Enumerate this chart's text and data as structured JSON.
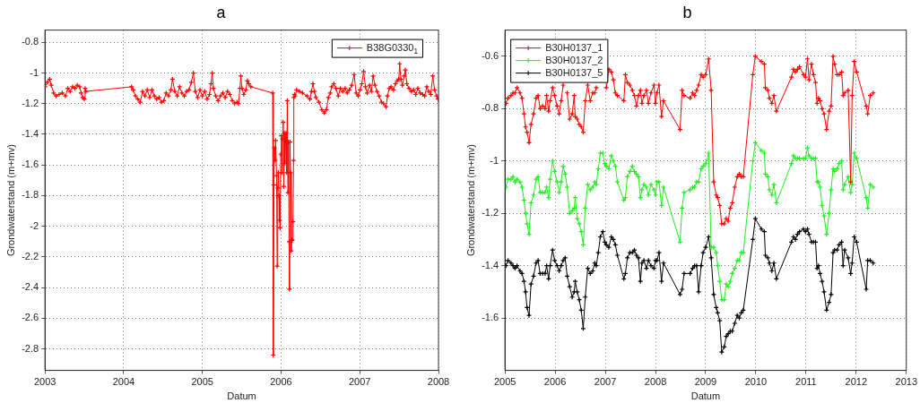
{
  "chart_data": [
    {
      "type": "line",
      "title": "a",
      "xlabel": "Datum",
      "ylabel": "Grondwaterstand (m+mv)",
      "xlim": [
        2003,
        2008
      ],
      "xticks": [
        2003,
        2004,
        2005,
        2006,
        2007,
        2008
      ],
      "ylim": [
        -2.94,
        -0.72
      ],
      "yticks": [
        -0.8,
        -1,
        -1.2,
        -1.4,
        -1.6,
        -1.8,
        -2,
        -2.2,
        -2.4,
        -2.6,
        -2.8
      ],
      "grid": true,
      "legend": "top right",
      "marker": "cross",
      "line_style": "solid",
      "series": [
        {
          "name": "B38G0330$_{1}$",
          "color": "#ff0000",
          "x": [
            2003,
            2003.03,
            2003.06,
            2003.08,
            2003.11,
            2003.14,
            2003.18,
            2003.22,
            2003.26,
            2003.29,
            2003.32,
            2003.35,
            2003.38,
            2003.41,
            2003.44,
            2003.46,
            2003.48,
            2003.5,
            2003.51,
            2003.52,
            2004.1,
            2004.12,
            2004.15,
            2004.18,
            2004.21,
            2004.24,
            2004.27,
            2004.3,
            2004.33,
            2004.36,
            2004.39,
            2004.42,
            2004.45,
            2004.48,
            2004.51,
            2004.54,
            2004.57,
            2004.6,
            2004.62,
            2004.65,
            2004.68,
            2004.71,
            2004.74,
            2004.77,
            2004.8,
            2004.83,
            2004.86,
            2004.886,
            2004.91,
            2004.94,
            2004.97,
            2005,
            2005.03,
            2005.06,
            2005.09,
            2005.11,
            2005.125,
            2005.14,
            2005.17,
            2005.2,
            2005.23,
            2005.26,
            2005.29,
            2005.32,
            2005.35,
            2005.38,
            2005.41,
            2005.44,
            2005.46,
            2005.477,
            2005.488,
            2005.503,
            2005.526,
            2005.553,
            2005.572,
            2005.59,
            2005.617,
            2005.893,
            2005.901,
            2005.909,
            2005.916,
            2005.924,
            2005.931,
            2005.943,
            2005.95,
            2005.958,
            2005.965,
            2005.973,
            2005.981,
            2005.988,
            2005.996,
            2006.003,
            2006.011,
            2006.018,
            2006.026,
            2006.034,
            2006.041,
            2006.049,
            2006.056,
            2006.064,
            2006.072,
            2006.079,
            2006.087,
            2006.094,
            2006.102,
            2006.106,
            2006.113,
            2006.121,
            2006.128,
            2006.136,
            2006.143,
            2006.151,
            2006.159,
            2006.162,
            2006.17,
            2006.178,
            2006.197,
            2006.234,
            2006.272,
            2006.329,
            2006.367,
            2006.386,
            2006.405,
            2006.424,
            2006.443,
            2006.481,
            2006.518,
            2006.549,
            2006.575,
            2006.602,
            2006.625,
            2006.643,
            2006.67,
            2006.697,
            2006.727,
            2006.753,
            2006.784,
            2006.814,
            2006.84,
            2006.867,
            2006.897,
            2006.928,
            2006.954,
            2006.981,
            2007.003,
            2007.026,
            2007.049,
            2007.072,
            2007.094,
            2007.125,
            2007.147,
            2007.17,
            2007.193,
            2007.219,
            2007.246,
            2007.276,
            2007.303,
            2007.333,
            2007.352,
            2007.375,
            2007.398,
            2007.428,
            2007.454,
            2007.477,
            2007.496,
            2007.507,
            2007.522,
            2007.541,
            2007.564,
            2007.579,
            2007.598,
            2007.625,
            2007.655,
            2007.685,
            2007.712,
            2007.738,
            2007.768,
            2007.799,
            2007.825,
            2007.852,
            2007.875,
            2007.901,
            2007.928,
            2007.951,
            2007.977,
            2007.996
          ],
          "values": [
            -1.09,
            -1.06,
            -1.04,
            -1.08,
            -1.13,
            -1.15,
            -1.14,
            -1.13,
            -1.15,
            -1.1,
            -1.12,
            -1.09,
            -1.1,
            -1.08,
            -1.09,
            -1.13,
            -1.16,
            -1.17,
            -1.1,
            -1.12,
            -1.09,
            -1.11,
            -1.15,
            -1.17,
            -1.19,
            -1.12,
            -1.15,
            -1.11,
            -1.16,
            -1.11,
            -1.15,
            -1.17,
            -1.16,
            -1.19,
            -1.18,
            -1.13,
            -1.15,
            -1.11,
            -1.04,
            -1.12,
            -1.15,
            -1.09,
            -1.13,
            -1.15,
            -1.12,
            -1.11,
            -1.06,
            -1,
            -1.12,
            -1.16,
            -1.11,
            -1.15,
            -1.12,
            -1.17,
            -1.14,
            -1.07,
            -1,
            -1.1,
            -1.15,
            -1.18,
            -1.15,
            -1.13,
            -1.16,
            -1.12,
            -1.14,
            -1.18,
            -1.2,
            -1.19,
            -1.2,
            -1.1,
            -1.02,
            -1.1,
            -1.14,
            -1.11,
            -1.05,
            -1.07,
            -1.09,
            -1.13,
            -2.84,
            -1.73,
            -1.49,
            -1.57,
            -1.44,
            -1.67,
            -2.26,
            -1.75,
            -1.65,
            -1.8,
            -1.96,
            -2.01,
            -1.53,
            -1.41,
            -1.65,
            -1.43,
            -1.32,
            -1.74,
            -1.39,
            -1.59,
            -1.45,
            -1.39,
            -1.65,
            -1.18,
            -1.78,
            -1.45,
            -2.1,
            -2.41,
            -1.45,
            -1.65,
            -2.16,
            -2.09,
            -2.09,
            -1.97,
            -1.57,
            -1.16,
            -1.14,
            -1.15,
            -1.11,
            -1.12,
            -1.13,
            -1.15,
            -1.17,
            -1.12,
            -1.07,
            -1.12,
            -1.16,
            -1.19,
            -1.24,
            -1.26,
            -1.24,
            -1.16,
            -1.13,
            -1.09,
            -1.07,
            -1.1,
            -1.15,
            -1.1,
            -1.12,
            -1.1,
            -1.13,
            -1.11,
            -1.08,
            -1.01,
            -1.13,
            -1.15,
            -1.11,
            -1.07,
            -0.99,
            -1.09,
            -1.13,
            -1.08,
            -1.12,
            -1.02,
            -1.08,
            -1.12,
            -1.15,
            -1.19,
            -1.2,
            -1.22,
            -1.15,
            -1.1,
            -1.09,
            -1.11,
            -1.07,
            -1.05,
            -1.04,
            -0.94,
            -1.04,
            -1.08,
            -1.02,
            -0.98,
            -1.07,
            -1.1,
            -1.12,
            -1.11,
            -1.14,
            -1.1,
            -1.13,
            -1.14,
            -1.15,
            -1.09,
            -1.12,
            -1.14,
            -1.02,
            -1.11,
            -1.15,
            -1.17
          ]
        }
      ]
    },
    {
      "type": "line",
      "title": "b",
      "xlabel": "Datum",
      "ylabel": "Grondwaterstand (m+mv)",
      "xlim": [
        2005,
        2013
      ],
      "xticks": [
        2005,
        2006,
        2007,
        2008,
        2009,
        2010,
        2011,
        2012,
        2013
      ],
      "ylim": [
        -1.8,
        -0.5
      ],
      "yticks": [
        -0.6,
        -0.8,
        -1,
        -1.2,
        -1.4,
        -1.6
      ],
      "grid": true,
      "legend": "top left",
      "marker": "cross",
      "line_style": "solid",
      "x": [
        2005.02,
        2005.06,
        2005.12,
        2005.16,
        2005.2,
        2005.24,
        2005.3,
        2005.34,
        2005.38,
        2005.41,
        2005.44,
        2005.48,
        2005.52,
        2005.57,
        2005.62,
        2005.66,
        2005.7,
        2005.75,
        2005.8,
        2005.83,
        2005.87,
        2005.9,
        2005.95,
        2005.99,
        2006.04,
        2006.08,
        2006.12,
        2006.16,
        2006.2,
        2006.24,
        2006.29,
        2006.34,
        2006.38,
        2006.4,
        2006.44,
        2006.48,
        2006.52,
        2006.56,
        2006.6,
        2006.65,
        2006.7,
        2006.75,
        2006.79,
        2006.82,
        2006.86,
        2006.9,
        2006.95,
        2006.99,
        2007.02,
        2007.07,
        2007.12,
        2007.16,
        2007.2,
        2007.24,
        2007.37,
        2007.4,
        2007.44,
        2007.49,
        2007.54,
        2007.58,
        2007.62,
        2007.66,
        2007.7,
        2007.73,
        2007.77,
        2007.82,
        2007.86,
        2007.91,
        2007.97,
        2008,
        2008.03,
        2008.07,
        2008.12,
        2008.16,
        2008.49,
        2008.53,
        2008.57,
        2008.69,
        2008.74,
        2008.78,
        2008.82,
        2008.86,
        2008.91,
        2008.95,
        2009,
        2009.06,
        2009.11,
        2009.16,
        2009.21,
        2009.24,
        2009.28,
        2009.32,
        2009.37,
        2009.41,
        2009.45,
        2009.49,
        2009.53,
        2009.58,
        2009.63,
        2009.67,
        2009.71,
        2009.75,
        2009.94,
        2009.99,
        2010.11,
        2010.17,
        2010.19,
        2010.24,
        2010.27,
        2010.32,
        2010.36,
        2010.41,
        2010.71,
        2010.75,
        2010.79,
        2010.83,
        2010.87,
        2010.95,
        2010.99,
        2011.03,
        2011.06,
        2011.11,
        2011.15,
        2011.19,
        2011.22,
        2011.25,
        2011.28,
        2011.32,
        2011.36,
        2011.41,
        2011.46,
        2011.5,
        2011.54,
        2011.57,
        2011.62,
        2011.66,
        2011.71,
        2011.74,
        2011.77,
        2011.84,
        2011.89,
        2011.92,
        2011.96,
        2012.01,
        2012.2,
        2012.23,
        2012.28,
        2012.34
      ],
      "series": [
        {
          "name": "B30H0137_1",
          "color": "#ff0000",
          "values": [
            -0.78,
            -0.76,
            -0.75,
            -0.74,
            -0.74,
            -0.72,
            -0.74,
            -0.76,
            -0.82,
            -0.87,
            -0.89,
            -0.93,
            -0.86,
            -0.82,
            -0.76,
            -0.75,
            -0.8,
            -0.79,
            -0.8,
            -0.75,
            -0.81,
            -0.77,
            -0.72,
            -0.75,
            -0.79,
            -0.82,
            -0.77,
            -0.71,
            null,
            -0.74,
            -0.84,
            -0.82,
            -0.75,
            -0.83,
            -0.84,
            -0.86,
            -0.87,
            -0.89,
            -0.77,
            -0.71,
            -0.77,
            -0.74,
            -0.74,
            -0.72,
            null,
            null,
            null,
            null,
            -0.72,
            -0.65,
            -0.66,
            -0.69,
            -0.74,
            -0.75,
            -0.77,
            -0.67,
            -0.7,
            -0.71,
            -0.73,
            -0.75,
            -0.79,
            -0.75,
            -0.73,
            -0.78,
            -0.75,
            -0.73,
            -0.78,
            -0.74,
            -0.71,
            -0.78,
            -0.74,
            -0.71,
            -0.83,
            -0.77,
            -0.88,
            -0.73,
            -0.75,
            -0.76,
            -0.74,
            -0.75,
            -0.73,
            -0.71,
            -0.67,
            -0.68,
            -0.67,
            -0.61,
            -0.73,
            -1.08,
            -1.13,
            -1.14,
            -1.17,
            -1.24,
            -1.24,
            -1.22,
            -1.23,
            -1.18,
            -1.16,
            -1.1,
            -1.06,
            -1.05,
            -1.06,
            -1.06,
            -0.67,
            -0.6,
            -0.62,
            -0.63,
            -0.72,
            -0.73,
            -0.76,
            -0.78,
            -0.75,
            -0.81,
            -0.68,
            -0.65,
            -0.66,
            -0.65,
            -0.64,
            -0.67,
            -0.68,
            -0.61,
            -0.69,
            -0.63,
            -0.67,
            -0.7,
            -0.78,
            -0.76,
            -0.77,
            -0.8,
            -0.82,
            -0.88,
            -0.81,
            -0.79,
            -0.6,
            -0.63,
            -0.67,
            -0.67,
            -0.66,
            -0.75,
            -0.74,
            -0.73,
            -1.08,
            -0.75,
            -0.62,
            -0.66,
            -0.79,
            -0.82,
            -0.75,
            -0.74
          ]
        },
        {
          "name": "B30H0137_2",
          "color": "#22ee22",
          "values": [
            -1.1,
            -1.07,
            -1.07,
            -1.06,
            -1.08,
            -1.07,
            -1.08,
            -1.1,
            -1.15,
            -1.2,
            -1.24,
            -1.28,
            -1.16,
            -1.13,
            -1.07,
            -1.06,
            -1.12,
            -1.12,
            -1.12,
            -1.1,
            -1.14,
            -1.07,
            -1,
            -1.04,
            -1.08,
            -1.12,
            -1.08,
            -1.02,
            -1.05,
            -1.1,
            -1.2,
            -1.19,
            -1.18,
            -1.14,
            -1.22,
            -1.24,
            -1.27,
            -1.32,
            -1.18,
            -1.09,
            -1.11,
            -1.1,
            -1.08,
            -1.09,
            -1.03,
            -0.97,
            -0.97,
            -1.01,
            -1.02,
            -1.03,
            -0.98,
            -1,
            -1.02,
            -1.08,
            -1.15,
            -1.14,
            -1.06,
            -1.04,
            -1.02,
            -1.04,
            -1.05,
            -1.06,
            -1.14,
            -1.11,
            -1.09,
            -1.1,
            -1.13,
            -1.09,
            -1.11,
            -1.13,
            -1.08,
            -1.08,
            -1.17,
            -1.1,
            -1.31,
            -1.18,
            -1.12,
            -1.11,
            -1.1,
            -1.1,
            -1.08,
            -1.08,
            -1.03,
            -1.02,
            -1.01,
            -0.97,
            -1.33,
            -1.33,
            -1.35,
            -1.4,
            -1.46,
            -1.53,
            -1.53,
            -1.47,
            -1.48,
            -1.46,
            -1.43,
            -1.41,
            -1.38,
            -1.38,
            -1.35,
            -1.35,
            -1,
            -0.93,
            -0.96,
            -0.97,
            -1.05,
            -1.06,
            -1.11,
            -1.13,
            -1.09,
            -1.16,
            -1.01,
            -0.98,
            -0.99,
            -0.99,
            -0.99,
            -0.99,
            -0.99,
            -0.95,
            -0.98,
            -0.99,
            -0.99,
            -0.99,
            -1.08,
            -1.08,
            -1.1,
            -1.17,
            -1.21,
            -1.28,
            -1.2,
            -1.11,
            -1.03,
            -1.04,
            -1.03,
            -1.01,
            -1,
            -1.11,
            -1.09,
            -1.06,
            -1.12,
            -1.09,
            -0.97,
            -0.99,
            -1.14,
            -1.18,
            -1.09,
            -1.1
          ]
        },
        {
          "name": "B30H0137_5",
          "color": "#000000",
          "values": [
            -1.4,
            -1.38,
            -1.39,
            -1.4,
            -1.41,
            -1.4,
            -1.42,
            -1.43,
            -1.46,
            -1.5,
            -1.56,
            -1.59,
            -1.47,
            -1.44,
            -1.39,
            -1.38,
            -1.43,
            -1.43,
            -1.43,
            -1.4,
            -1.45,
            -1.4,
            -1.34,
            -1.38,
            -1.4,
            -1.42,
            -1.4,
            -1.38,
            -1.37,
            -1.44,
            -1.48,
            -1.52,
            -1.5,
            -1.46,
            -1.5,
            -1.53,
            -1.57,
            -1.64,
            -1.52,
            -1.41,
            -1.43,
            -1.42,
            -1.39,
            -1.4,
            -1.35,
            -1.29,
            -1.27,
            -1.31,
            -1.32,
            -1.33,
            -1.29,
            -1.3,
            -1.32,
            -1.36,
            -1.45,
            -1.43,
            -1.37,
            -1.35,
            -1.35,
            -1.34,
            -1.36,
            -1.37,
            -1.46,
            -1.39,
            -1.38,
            -1.41,
            -1.38,
            -1.4,
            -1.41,
            -1.38,
            -1.38,
            -1.35,
            -1.46,
            -1.39,
            -1.51,
            -1.49,
            -1.43,
            -1.43,
            -1.41,
            -1.4,
            -1.4,
            -1.5,
            -1.4,
            -1.35,
            -1.33,
            -1.29,
            -1.37,
            -1.51,
            -1.56,
            -1.58,
            -1.61,
            -1.73,
            -1.71,
            -1.67,
            -1.66,
            -1.65,
            -1.65,
            -1.62,
            -1.59,
            -1.6,
            -1.58,
            -1.57,
            -1.3,
            -1.22,
            -1.26,
            -1.27,
            -1.36,
            -1.37,
            -1.39,
            -1.42,
            -1.39,
            -1.45,
            -1.31,
            -1.29,
            -1.3,
            -1.28,
            -1.27,
            -1.26,
            -1.27,
            -1.26,
            -1.28,
            -1.31,
            -1.31,
            -1.31,
            -1.41,
            -1.4,
            -1.43,
            -1.46,
            -1.5,
            -1.57,
            -1.54,
            -1.51,
            -1.35,
            -1.34,
            -1.34,
            -1.32,
            -1.31,
            -1.4,
            -1.34,
            -1.37,
            -1.43,
            -1.39,
            -1.29,
            -1.31,
            -1.49,
            -1.38,
            -1.38,
            -1.39
          ]
        }
      ]
    }
  ]
}
